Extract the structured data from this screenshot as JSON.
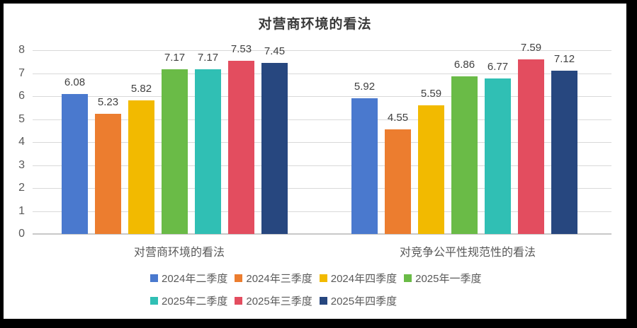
{
  "frame": {
    "background": "#000000",
    "surface": "#ffffff"
  },
  "chart_data": {
    "type": "bar",
    "title": "对营商环境的看法",
    "categories": [
      "对营商环境的看法",
      "对竞争公平性规范性的看法"
    ],
    "series": [
      {
        "name": "2024年二季度",
        "color": "#4A79CE",
        "values": [
          6.08,
          5.92
        ]
      },
      {
        "name": "2024年三季度",
        "color": "#EC7D2F",
        "values": [
          5.23,
          4.55
        ]
      },
      {
        "name": "2024年四季度",
        "color": "#F2BA00",
        "values": [
          5.82,
          5.59
        ]
      },
      {
        "name": "2025年一季度",
        "color": "#6ABB47",
        "values": [
          7.17,
          6.86
        ]
      },
      {
        "name": "2025年二季度",
        "color": "#30BFB4",
        "values": [
          7.17,
          6.77
        ]
      },
      {
        "name": "2025年三季度",
        "color": "#E34D5F",
        "values": [
          7.53,
          7.59
        ]
      },
      {
        "name": "2025年四季度",
        "color": "#27477F",
        "values": [
          7.45,
          7.12
        ]
      }
    ],
    "ylim": [
      0,
      8
    ],
    "yticks": [
      "0",
      "1",
      "2",
      "3",
      "4",
      "5",
      "6",
      "7",
      "8"
    ],
    "grid": true,
    "value_labels": true,
    "legend_position": "bottom",
    "colors": {
      "grid": "#d9d9d9",
      "axis_line": "#c8c8c8",
      "tick_text": "#595959",
      "value_text": "#404040",
      "title_text": "#3a3a3a"
    }
  }
}
